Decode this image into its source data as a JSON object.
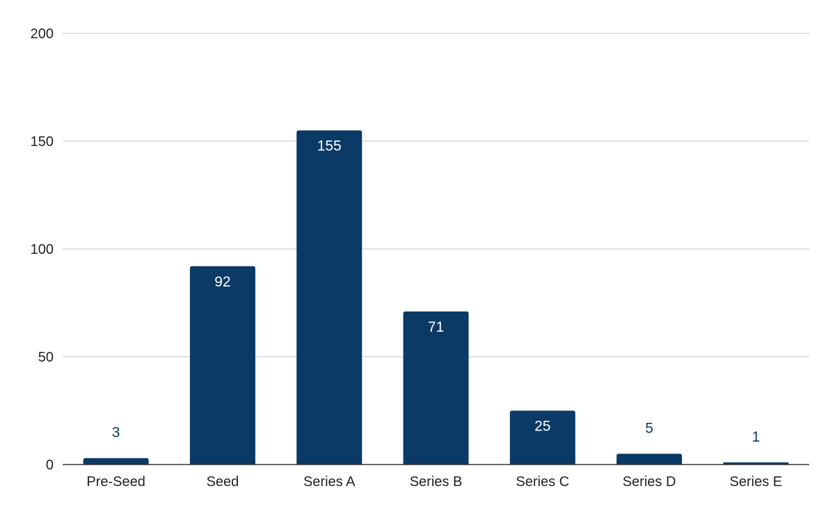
{
  "chart_data": {
    "type": "bar",
    "title": "",
    "xlabel": "",
    "ylabel": "",
    "categories": [
      "Pre-Seed",
      "Seed",
      "Series A",
      "Series B",
      "Series C",
      "Series D",
      "Series E"
    ],
    "values": [
      3,
      92,
      155,
      71,
      25,
      5,
      1
    ],
    "data_labels": [
      "3",
      "92",
      "155",
      "71",
      "25",
      "5",
      "1"
    ],
    "yticks": [
      "0",
      "50",
      "100",
      "150",
      "200"
    ],
    "ylim": [
      0,
      200
    ],
    "grid": true,
    "legend": "none",
    "bar_color": "#0b3a66",
    "grid_color": "#cfcfcf"
  }
}
